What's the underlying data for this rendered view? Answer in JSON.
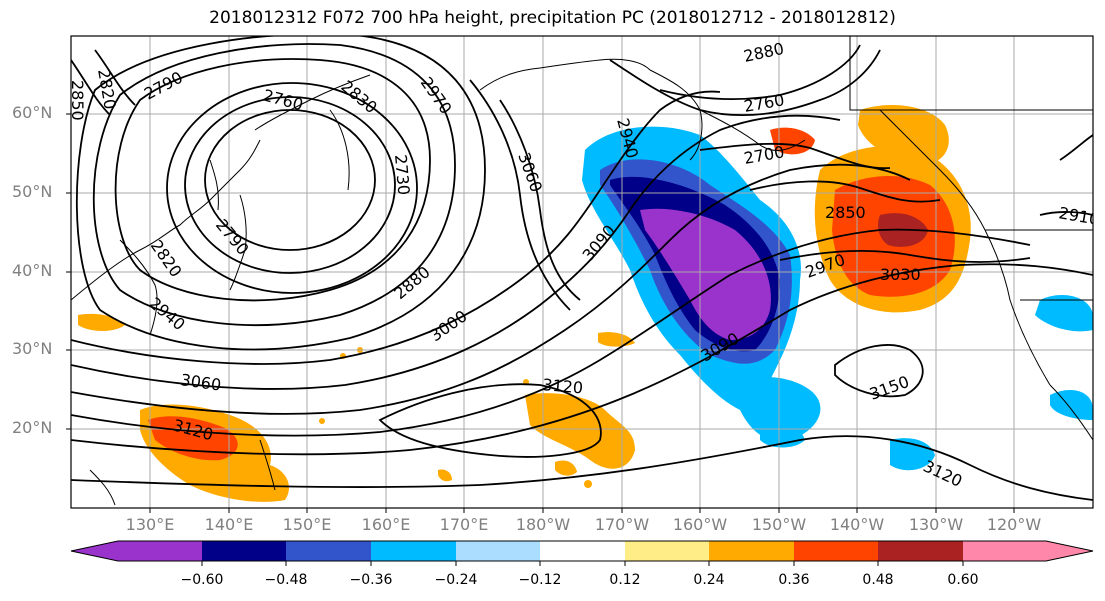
{
  "title": "2018012312 F072 700 hPa height, precipitation PC (2018012712 - 2018012812)",
  "lat_labels": [
    "60°N",
    "50°N",
    "40°N",
    "30°N",
    "20°N"
  ],
  "lon_labels": [
    "130°E",
    "140°E",
    "150°E",
    "160°E",
    "170°E",
    "180°W",
    "170°W",
    "160°W",
    "150°W",
    "140°W",
    "130°W",
    "120°W"
  ],
  "colorbar": {
    "colors": [
      "#9933cc",
      "#000088",
      "#3355cc",
      "#00bbff",
      "#aaddff",
      "#ffffff",
      "#ffee88",
      "#ffaa00",
      "#ff4400",
      "#aa2222",
      "#ff88aa"
    ],
    "tick_labels": [
      "−0.60",
      "−0.48",
      "−0.36",
      "−0.24",
      "−0.12",
      "0.12",
      "0.24",
      "0.36",
      "0.48",
      "0.60"
    ]
  },
  "contour_labels": [
    "2850",
    "2820",
    "2790",
    "2760",
    "2830",
    "2970",
    "2730",
    "3060",
    "2880",
    "2760",
    "2940",
    "2700",
    "2850",
    "2910",
    "2820",
    "2790",
    "2940",
    "2880",
    "3000",
    "3090",
    "2970",
    "3030",
    "3090",
    "3060",
    "3120",
    "3150",
    "3120",
    "3120"
  ]
}
